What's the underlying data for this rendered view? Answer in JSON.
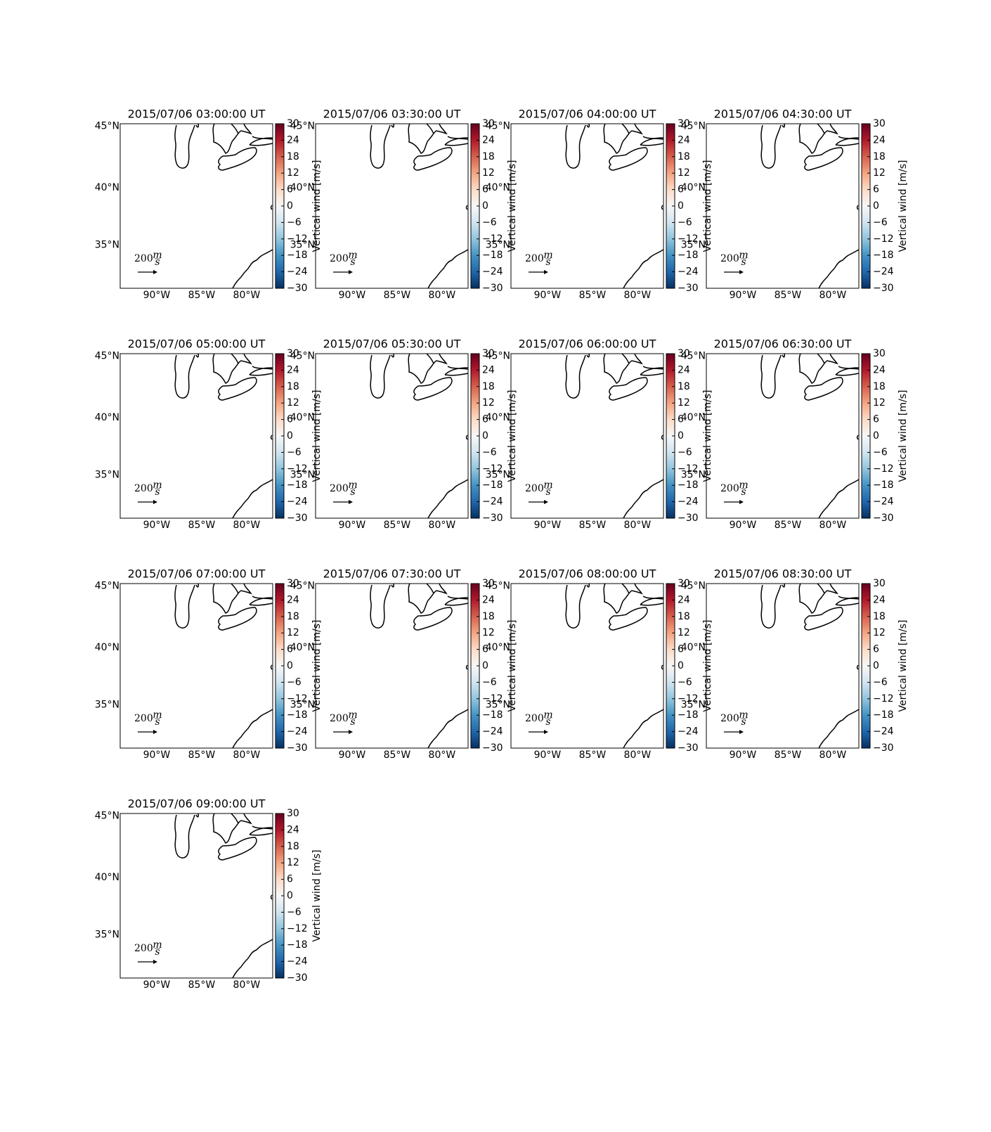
{
  "panels": [
    {
      "title": "2015/07/06 03:00:00 UT"
    },
    {
      "title": "2015/07/06 03:30:00 UT"
    },
    {
      "title": "2015/07/06 04:00:00 UT"
    },
    {
      "title": "2015/07/06 04:30:00 UT"
    },
    {
      "title": "2015/07/06 05:00:00 UT"
    },
    {
      "title": "2015/07/06 05:30:00 UT"
    },
    {
      "title": "2015/07/06 06:00:00 UT"
    },
    {
      "title": "2015/07/06 06:30:00 UT"
    },
    {
      "title": "2015/07/06 07:00:00 UT"
    },
    {
      "title": "2015/07/06 07:30:00 UT"
    },
    {
      "title": "2015/07/06 08:00:00 UT"
    },
    {
      "title": "2015/07/06 08:30:00 UT"
    },
    {
      "title": "2015/07/06 09:00:00 UT"
    }
  ],
  "map": {
    "projection": "mercator",
    "xlim": [
      -94.06,
      -77.1
    ],
    "ylim": [
      31.0,
      45.2
    ],
    "xticks": [
      {
        "value": -90,
        "label": "90°W"
      },
      {
        "value": -85,
        "label": "85°W"
      },
      {
        "value": -80,
        "label": "80°W"
      }
    ],
    "yticks": [
      {
        "value": 35,
        "label": "35°N"
      },
      {
        "value": 40,
        "label": "40°N"
      },
      {
        "value": 45,
        "label": "45°N"
      }
    ]
  },
  "colorbar": {
    "colormap": "RdBu_r",
    "label": "Vertical wind [m/s]",
    "clim": [
      -30,
      30
    ],
    "ticks": [
      {
        "value": -30,
        "label": "−30"
      },
      {
        "value": -24,
        "label": "−24"
      },
      {
        "value": -18,
        "label": "−18"
      },
      {
        "value": -12,
        "label": "−12"
      },
      {
        "value": -6,
        "label": "−6"
      },
      0,
      6,
      12,
      18,
      24,
      30
    ]
  },
  "quiver_key": {
    "value": 200,
    "numerator": "m",
    "denominator": "s"
  }
}
